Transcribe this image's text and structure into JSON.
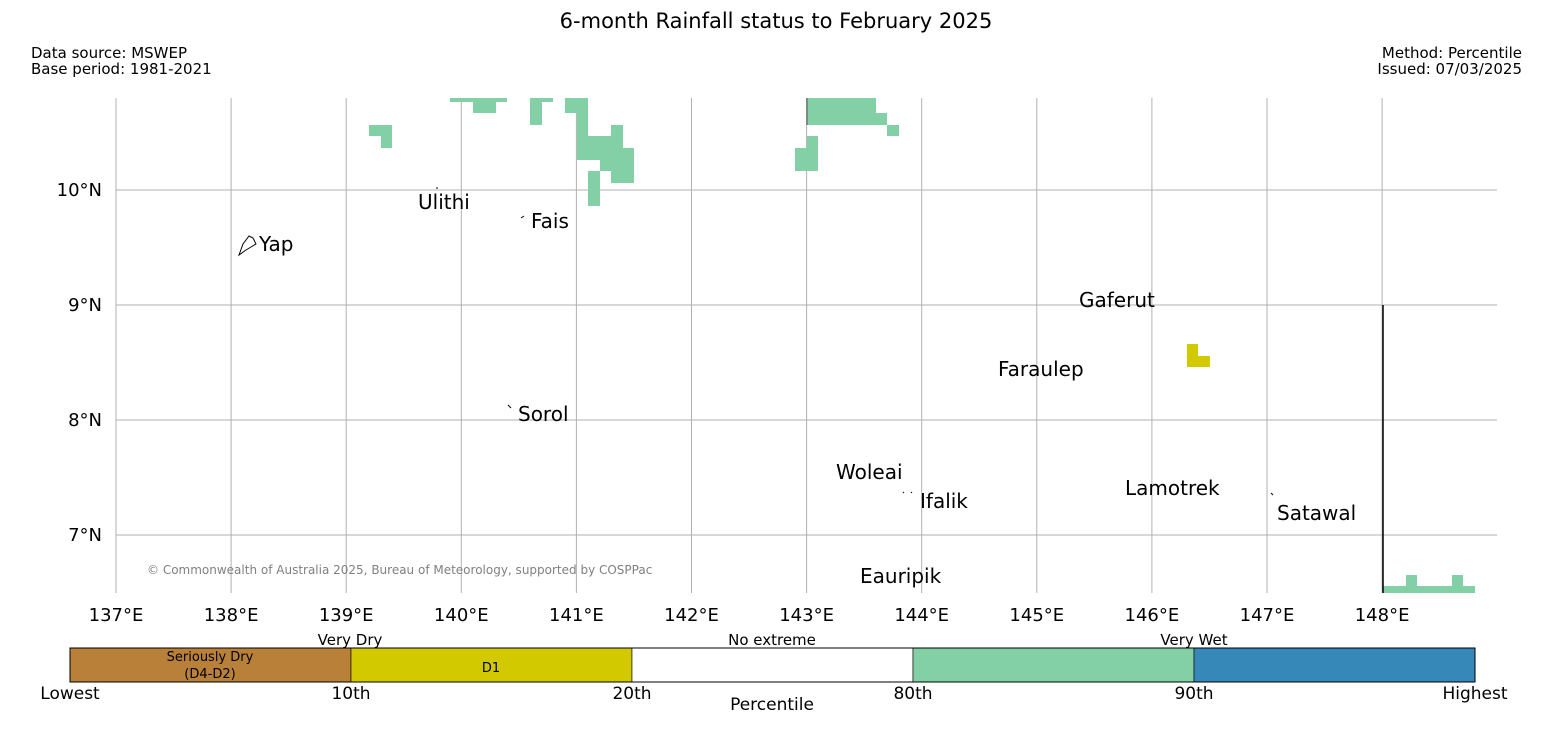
{
  "header": {
    "title": "6-month Rainfall status to February 2025",
    "data_source": "Data source: MSWEP",
    "base_period": "Base period: 1981-2021",
    "method": "Method: Percentile",
    "issued": "Issued: 07/03/2025"
  },
  "map": {
    "lon_ticks": [
      "137°E",
      "138°E",
      "139°E",
      "140°E",
      "141°E",
      "142°E",
      "143°E",
      "144°E",
      "145°E",
      "146°E",
      "147°E",
      "148°E"
    ],
    "lat_ticks": [
      "10°N",
      "9°N",
      "8°N",
      "7°N"
    ],
    "copyright": "© Commonwealth of Australia 2025, Bureau of Meteorology, supported by COSPPac",
    "places": [
      "Ulithi",
      "Fais",
      "Yap",
      "Gaferut",
      "Faraulep",
      "Sorol",
      "Woleai",
      "Ifalik",
      "Lamotrek",
      "Satawal",
      "Eauripik"
    ]
  },
  "legend": {
    "categories": [
      "Very Dry",
      "No extreme",
      "Very Wet"
    ],
    "bins": [
      {
        "line1": "Seriously Dry",
        "line2": "(D4-D2)",
        "color": "#b98039"
      },
      {
        "line1": "D1",
        "line2": "",
        "color": "#d2c900"
      },
      {
        "line1": "",
        "line2": "",
        "color": "#ffffff"
      },
      {
        "line1": "",
        "line2": "",
        "color": "#84d0a6"
      },
      {
        "line1": "",
        "line2": "",
        "color": "#3688b8"
      }
    ],
    "ticks": [
      "Lowest",
      "10th",
      "20th",
      "80th",
      "90th",
      "Highest"
    ],
    "axis_label": "Percentile"
  },
  "colors": {
    "very_wet": "#84d0a6",
    "d1": "#d2c900",
    "grid": "#b0b0b0"
  }
}
